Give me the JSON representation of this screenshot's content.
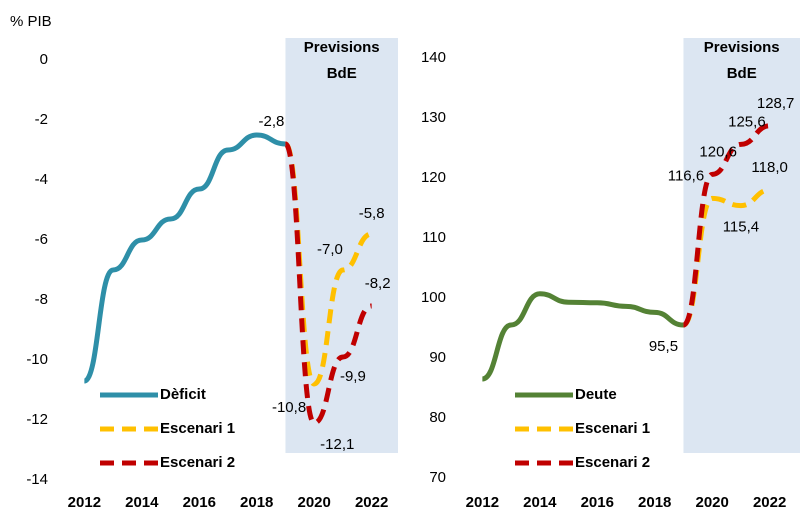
{
  "chart_data": [
    {
      "type": "line",
      "y_label": "% PIB",
      "annotation": [
        "Previsions",
        "BdE"
      ],
      "xlim": [
        2011.5,
        2022.5
      ],
      "xticks": [
        2012,
        2014,
        2016,
        2018,
        2020,
        2022
      ],
      "ylim": [
        -14,
        0
      ],
      "yticks": [
        0,
        -2,
        -4,
        -6,
        -8,
        -10,
        -12,
        -14
      ],
      "series": [
        {
          "name": "Dèficit",
          "color": "#2e8fa8",
          "dashed": false,
          "x": [
            2012,
            2013,
            2014,
            2015,
            2016,
            2017,
            2018,
            2019
          ],
          "values": [
            -10.7,
            -7.0,
            -6.0,
            -5.3,
            -4.3,
            -3.0,
            -2.5,
            -2.8
          ],
          "value_labels": [
            null,
            null,
            null,
            null,
            null,
            null,
            null,
            "-2,8"
          ]
        },
        {
          "name": "Escenari 1",
          "color": "#ffc000",
          "dashed": true,
          "x": [
            2019,
            2020,
            2021,
            2022
          ],
          "values": [
            -2.8,
            -10.8,
            -7.0,
            -5.8
          ],
          "value_labels": [
            null,
            "-10,8",
            "-7,0",
            "-5,8"
          ]
        },
        {
          "name": "Escenari 2",
          "color": "#c00000",
          "dashed": true,
          "x": [
            2019,
            2020,
            2021,
            2022
          ],
          "values": [
            -2.8,
            -12.1,
            -9.9,
            -8.2
          ],
          "value_labels": [
            null,
            "-12,1",
            "-9,9",
            "-8,2"
          ]
        }
      ]
    },
    {
      "type": "line",
      "annotation": [
        "Previsions",
        "BdE"
      ],
      "xlim": [
        2011.5,
        2022.5
      ],
      "xticks": [
        2012,
        2014,
        2016,
        2018,
        2020,
        2022
      ],
      "ylim": [
        70,
        140
      ],
      "yticks": [
        70,
        80,
        90,
        100,
        110,
        120,
        130,
        140
      ],
      "series": [
        {
          "name": "Deute",
          "color": "#548235",
          "dashed": false,
          "x": [
            2012,
            2013,
            2014,
            2015,
            2016,
            2017,
            2018,
            2019
          ],
          "values": [
            86.5,
            95.5,
            100.7,
            99.3,
            99.2,
            98.6,
            97.6,
            95.5
          ],
          "value_labels": [
            null,
            null,
            null,
            null,
            null,
            null,
            null,
            "95,5"
          ]
        },
        {
          "name": "Escenari 1",
          "color": "#ffc000",
          "dashed": true,
          "x": [
            2019,
            2020,
            2021,
            2022
          ],
          "values": [
            95.5,
            116.6,
            115.4,
            118.0
          ],
          "value_labels": [
            null,
            "116,6",
            "115,4",
            "118,0"
          ]
        },
        {
          "name": "Escenari 2",
          "color": "#c00000",
          "dashed": true,
          "x": [
            2019,
            2020,
            2021,
            2022
          ],
          "values": [
            95.5,
            120.6,
            125.6,
            128.7
          ],
          "value_labels": [
            null,
            "120,6",
            "125,6",
            "128,7"
          ]
        }
      ]
    }
  ]
}
